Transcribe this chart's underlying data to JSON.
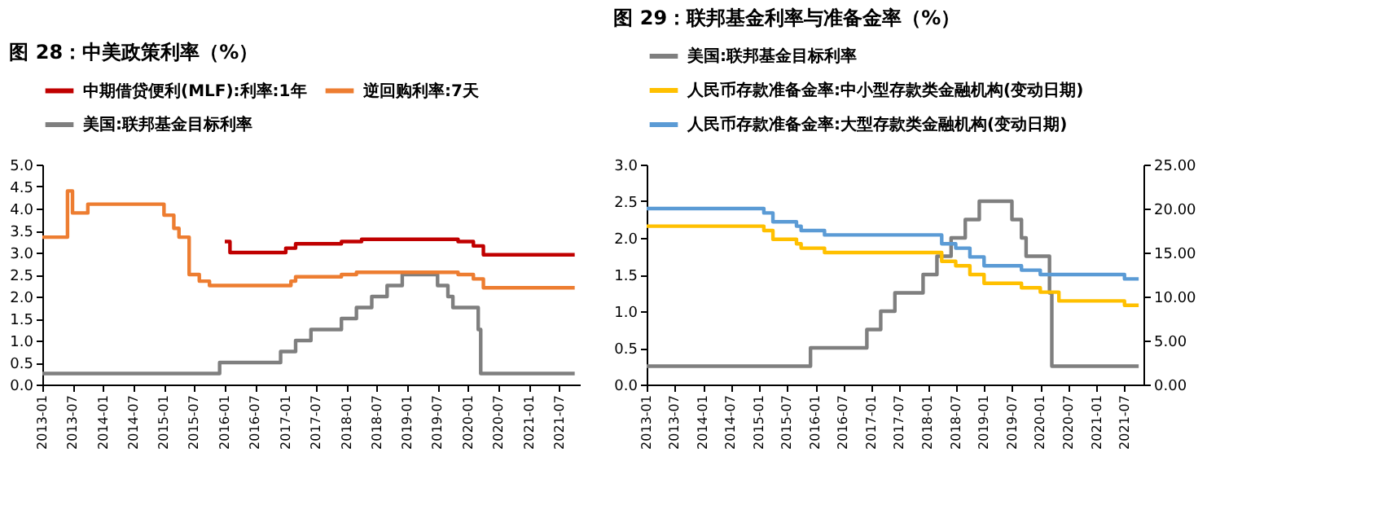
{
  "chart_data": [
    {
      "type": "step",
      "title": "图 28：中美政策利率（%）",
      "legend": "top",
      "grid": false,
      "line_style": "solid",
      "marker": "none",
      "xlim": [
        "2013-01",
        "2021-11"
      ],
      "xticks": [
        "2013-01",
        "2013-07",
        "2014-01",
        "2014-07",
        "2015-01",
        "2015-07",
        "2016-01",
        "2016-07",
        "2017-01",
        "2017-07",
        "2018-01",
        "2018-07",
        "2019-01",
        "2019-07",
        "2020-01",
        "2020-07",
        "2021-01",
        "2021-07"
      ],
      "ylim": [
        0,
        5
      ],
      "yticks": [
        {
          "value": 0,
          "label": "0.0"
        },
        {
          "value": 0.5,
          "label": "0.5"
        },
        {
          "value": 1,
          "label": "1.0"
        },
        {
          "value": 1.5,
          "label": "1.5"
        },
        {
          "value": 2,
          "label": "2.0"
        },
        {
          "value": 2.5,
          "label": "2.5"
        },
        {
          "value": 3,
          "label": "3.0"
        },
        {
          "value": 3.5,
          "label": "3.5"
        },
        {
          "value": 4,
          "label": "4.0"
        },
        {
          "value": 4.5,
          "label": "4.5"
        },
        {
          "value": 5,
          "label": "5.0"
        }
      ],
      "series": [
        {
          "name": "中期借贷便利(MLF):利率:1年",
          "color": "#c00000",
          "x": [
            "2016-01",
            "2016-02",
            "2017-01",
            "2017-03",
            "2017-12",
            "2018-04",
            "2019-11",
            "2020-02",
            "2020-04",
            "2021-10"
          ],
          "values": [
            3.25,
            3.0,
            3.1,
            3.2,
            3.25,
            3.3,
            3.25,
            3.15,
            2.95,
            2.95
          ]
        },
        {
          "name": "美国:联邦基金目标利率",
          "color": "#7f7f7f",
          "x": [
            "2013-01",
            "2015-12",
            "2016-12",
            "2017-03",
            "2017-06",
            "2017-12",
            "2018-03",
            "2018-06",
            "2018-09",
            "2018-12",
            "2019-07",
            "2019-09",
            "2019-10",
            "2020-03",
            "2020-03-16",
            "2021-10"
          ],
          "values": [
            0.25,
            0.5,
            0.75,
            1.0,
            1.25,
            1.5,
            1.75,
            2.0,
            2.25,
            2.5,
            2.25,
            2.0,
            1.75,
            1.25,
            0.25,
            0.25
          ]
        },
        {
          "name": "逆回购利率:7天",
          "color": "#ed7d31",
          "x": [
            "2013-01",
            "2013-06",
            "2013-07",
            "2013-10",
            "2015-01",
            "2015-03",
            "2015-04",
            "2015-06",
            "2015-08",
            "2015-10",
            "2017-02",
            "2017-03",
            "2017-12",
            "2018-03",
            "2019-11",
            "2020-02",
            "2020-04",
            "2021-10"
          ],
          "values": [
            3.35,
            4.4,
            3.9,
            4.1,
            3.85,
            3.55,
            3.35,
            2.5,
            2.35,
            2.25,
            2.35,
            2.45,
            2.5,
            2.55,
            2.5,
            2.4,
            2.2,
            2.2
          ]
        }
      ]
    },
    {
      "type": "step",
      "title": "图 29：联邦基金利率与准备金率（%）",
      "legend": "top",
      "grid": false,
      "line_style": "solid",
      "marker": "none",
      "xlim": [
        "2013-01",
        "2021-11"
      ],
      "xticks": [
        "2013-01",
        "2013-07",
        "2014-01",
        "2014-07",
        "2015-01",
        "2015-07",
        "2016-01",
        "2016-07",
        "2017-01",
        "2017-07",
        "2018-01",
        "2018-07",
        "2019-01",
        "2019-07",
        "2020-01",
        "2020-07",
        "2021-01",
        "2021-07"
      ],
      "ylim": [
        0,
        3
      ],
      "yticks": [
        {
          "value": 0,
          "label": "0.0"
        },
        {
          "value": 0.5,
          "label": "0.5"
        },
        {
          "value": 1,
          "label": "1.0"
        },
        {
          "value": 1.5,
          "label": "1.5"
        },
        {
          "value": 2,
          "label": "2.0"
        },
        {
          "value": 2.5,
          "label": "2.5"
        },
        {
          "value": 3,
          "label": "3.0"
        }
      ],
      "y2lim": [
        0,
        25
      ],
      "y2ticks": [
        {
          "value": 0,
          "label": "0.00"
        },
        {
          "value": 5,
          "label": "5.00"
        },
        {
          "value": 10,
          "label": "10.00"
        },
        {
          "value": 15,
          "label": "15.00"
        },
        {
          "value": 20,
          "label": "20.00"
        },
        {
          "value": 25,
          "label": "25.00"
        }
      ],
      "series": [
        {
          "name": "美国:联邦基金目标利率",
          "color": "#7f7f7f",
          "x": [
            "2013-01",
            "2015-12",
            "2016-12",
            "2017-03",
            "2017-06",
            "2017-12",
            "2018-03",
            "2018-06",
            "2018-09",
            "2018-12",
            "2019-07",
            "2019-09",
            "2019-10",
            "2020-03",
            "2020-03-16",
            "2021-10"
          ],
          "values": [
            0.25,
            0.5,
            0.75,
            1.0,
            1.25,
            1.5,
            1.75,
            2.0,
            2.25,
            2.5,
            2.25,
            2.0,
            1.75,
            1.25,
            0.25,
            0.25
          ]
        },
        {
          "name": "人民币存款准备金率:中小型存款类金融机构(变动日期)",
          "color": "#ffc000",
          "axis": "y2",
          "x": [
            "2013-01",
            "2015-02",
            "2015-04",
            "2015-09",
            "2015-10",
            "2016-03",
            "2018-04",
            "2018-07",
            "2018-10",
            "2019-01",
            "2019-09",
            "2020-01",
            "2020-05",
            "2021-07",
            "2021-10"
          ],
          "values": [
            18,
            17.5,
            16.5,
            16,
            15.5,
            15,
            14,
            13.5,
            12.5,
            11.5,
            11,
            10.5,
            9.5,
            9,
            9
          ]
        },
        {
          "name": "人民币存款准备金率:大型存款类金融机构(变动日期)",
          "color": "#5b9bd5",
          "axis": "y2",
          "x": [
            "2013-01",
            "2015-02",
            "2015-04",
            "2015-09",
            "2015-10",
            "2016-03",
            "2018-04",
            "2018-07",
            "2018-10",
            "2019-01",
            "2019-09",
            "2020-01",
            "2021-07",
            "2021-10"
          ],
          "values": [
            20,
            19.5,
            18.5,
            18,
            17.5,
            17,
            16,
            15.5,
            14.5,
            13.5,
            13,
            12.5,
            12,
            12
          ]
        }
      ]
    }
  ]
}
